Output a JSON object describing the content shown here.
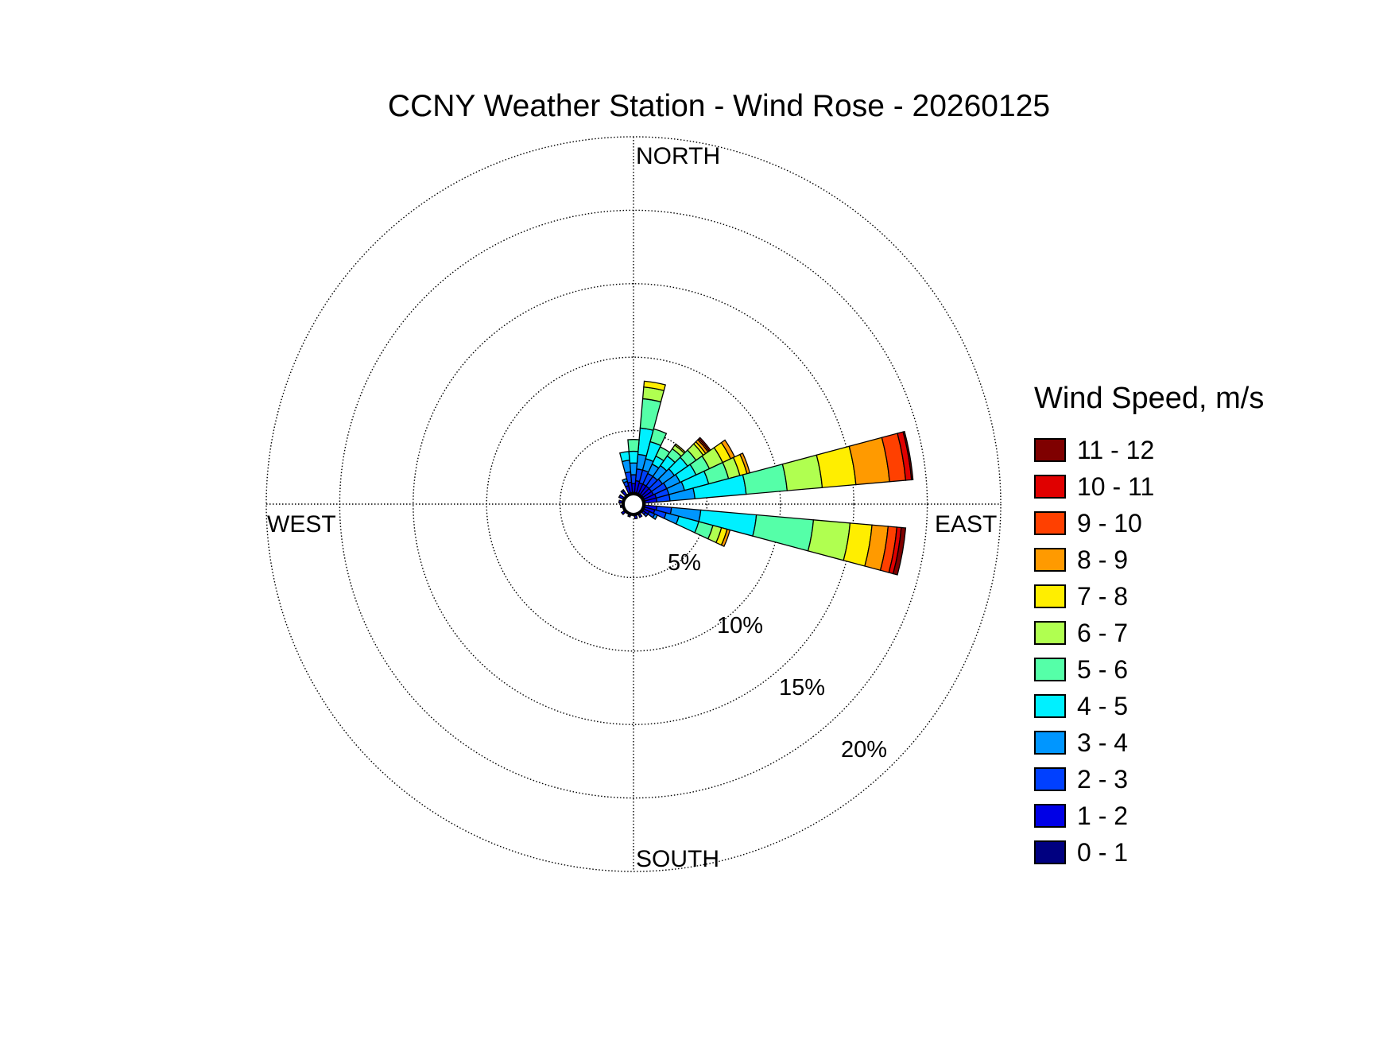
{
  "chart_data": {
    "type": "wind-rose",
    "title": "CCNY Weather Station - Wind Rose - 20260125",
    "directions": {
      "north": "NORTH",
      "south": "SOUTH",
      "east": "EAST",
      "west": "WEST"
    },
    "radial_max_pct": 25,
    "radial_ticks": [
      5,
      10,
      15,
      20,
      25
    ],
    "radial_tick_labels": [
      "5%",
      "10%",
      "15%",
      "20%"
    ],
    "legend_title": "Wind Speed, m/s",
    "speed_bins": [
      {
        "label": "11 - 12",
        "color": "#7f0000"
      },
      {
        "label": "10 - 11",
        "color": "#e00000"
      },
      {
        "label": "9 - 10",
        "color": "#ff4000"
      },
      {
        "label": "8 - 9",
        "color": "#ff9a00"
      },
      {
        "label": "7 - 8",
        "color": "#ffee00"
      },
      {
        "label": "6 - 7",
        "color": "#b0ff50"
      },
      {
        "label": "5 - 6",
        "color": "#55ffa8"
      },
      {
        "label": "4 - 5",
        "color": "#00f0ff"
      },
      {
        "label": "3 - 4",
        "color": "#0096ff"
      },
      {
        "label": "2 - 3",
        "color": "#0040ff"
      },
      {
        "label": "1 - 2",
        "color": "#0000e6"
      },
      {
        "label": "0 - 1",
        "color": "#000080"
      }
    ],
    "sector_width_deg": 10,
    "sectors": [
      {
        "direction_deg": 10,
        "cumulative_pct": [
          0.8,
          1.6,
          2.4,
          3.4,
          5.2,
          7.2,
          8.0,
          8.4,
          8.4,
          8.4,
          8.4,
          8.4
        ]
      },
      {
        "direction_deg": 20,
        "cumulative_pct": [
          0.8,
          1.5,
          2.4,
          3.2,
          4.4,
          5.3,
          5.3,
          5.3,
          5.3,
          5.3,
          5.3,
          5.3
        ]
      },
      {
        "direction_deg": 30,
        "cumulative_pct": [
          0.8,
          1.5,
          2.3,
          3.0,
          3.6,
          4.3,
          4.3,
          4.3,
          4.3,
          4.3,
          4.3,
          4.3
        ]
      },
      {
        "direction_deg": 40,
        "cumulative_pct": [
          0.8,
          1.5,
          2.3,
          3.2,
          4.0,
          4.6,
          4.9,
          5.0,
          5.0,
          5.0,
          5.0,
          5.0
        ]
      },
      {
        "direction_deg": 50,
        "cumulative_pct": [
          0.8,
          1.5,
          2.4,
          3.4,
          4.5,
          5.2,
          5.8,
          6.0,
          6.2,
          6.3,
          6.4,
          6.4
        ]
      },
      {
        "direction_deg": 60,
        "cumulative_pct": [
          0.8,
          1.5,
          2.5,
          3.5,
          4.7,
          5.7,
          6.7,
          7.3,
          7.6,
          7.6,
          7.6,
          7.6
        ]
      },
      {
        "direction_deg": 70,
        "cumulative_pct": [
          0.8,
          1.6,
          2.5,
          3.6,
          5.3,
          6.7,
          7.5,
          8.0,
          8.2,
          8.2,
          8.2,
          8.2
        ]
      },
      {
        "direction_deg": 80,
        "cumulative_pct": [
          0.8,
          1.6,
          2.5,
          4.2,
          7.7,
          10.5,
          12.9,
          15.2,
          17.5,
          18.6,
          19.0,
          19.1
        ]
      },
      {
        "direction_deg": 100,
        "cumulative_pct": [
          0.8,
          1.6,
          2.6,
          4.6,
          8.4,
          12.3,
          14.8,
          16.3,
          17.4,
          18.0,
          18.3,
          18.6
        ]
      },
      {
        "direction_deg": 110,
        "cumulative_pct": [
          0.8,
          1.5,
          2.3,
          3.2,
          4.6,
          5.6,
          6.2,
          6.6,
          6.8,
          6.8,
          6.8,
          6.8
        ]
      },
      {
        "direction_deg": 120,
        "cumulative_pct": [
          0.8,
          1.2,
          1.6,
          1.8,
          1.8,
          1.8,
          1.8,
          1.8,
          1.8,
          1.8,
          1.8,
          1.8
        ]
      },
      {
        "direction_deg": 130,
        "cumulative_pct": [
          0.8,
          1.0,
          1.2,
          1.2,
          1.2,
          1.2,
          1.2,
          1.2,
          1.2,
          1.2,
          1.2,
          1.2
        ]
      },
      {
        "direction_deg": 150,
        "cumulative_pct": [
          0.8,
          1.0,
          1.0,
          1.0,
          1.0,
          1.0,
          1.0,
          1.0,
          1.0,
          1.0,
          1.0,
          1.0
        ]
      },
      {
        "direction_deg": 170,
        "cumulative_pct": [
          0.8,
          1.0,
          1.0,
          1.0,
          1.0,
          1.0,
          1.0,
          1.0,
          1.0,
          1.0,
          1.0,
          1.0
        ]
      },
      {
        "direction_deg": 200,
        "cumulative_pct": [
          0.8,
          0.9,
          0.9,
          0.9,
          0.9,
          0.9,
          0.9,
          0.9,
          0.9,
          0.9,
          0.9,
          0.9
        ]
      },
      {
        "direction_deg": 230,
        "cumulative_pct": [
          0.8,
          1.0,
          1.0,
          1.0,
          1.0,
          1.0,
          1.0,
          1.0,
          1.0,
          1.0,
          1.0,
          1.0
        ]
      },
      {
        "direction_deg": 260,
        "cumulative_pct": [
          0.8,
          0.9,
          0.9,
          0.9,
          0.9,
          0.9,
          0.9,
          0.9,
          0.9,
          0.9,
          0.9,
          0.9
        ]
      },
      {
        "direction_deg": 280,
        "cumulative_pct": [
          0.8,
          1.0,
          1.0,
          1.0,
          1.0,
          1.0,
          1.0,
          1.0,
          1.0,
          1.0,
          1.0,
          1.0
        ]
      },
      {
        "direction_deg": 300,
        "cumulative_pct": [
          0.8,
          1.1,
          1.1,
          1.1,
          1.1,
          1.1,
          1.1,
          1.1,
          1.1,
          1.1,
          1.1,
          1.1
        ]
      },
      {
        "direction_deg": 320,
        "cumulative_pct": [
          0.8,
          1.1,
          1.2,
          1.2,
          1.2,
          1.2,
          1.2,
          1.2,
          1.2,
          1.2,
          1.2,
          1.2
        ]
      },
      {
        "direction_deg": 340,
        "cumulative_pct": [
          0.8,
          1.3,
          1.6,
          1.8,
          1.8,
          1.8,
          1.8,
          1.8,
          1.8,
          1.8,
          1.8,
          1.8
        ]
      },
      {
        "direction_deg": 350,
        "cumulative_pct": [
          0.8,
          1.5,
          2.2,
          3.0,
          3.6,
          3.6,
          3.6,
          3.6,
          3.6,
          3.6,
          3.6,
          3.6
        ]
      },
      {
        "direction_deg": 0,
        "cumulative_pct": [
          0.8,
          1.4,
          2.0,
          2.8,
          3.6,
          4.4,
          4.4,
          4.4,
          4.4,
          4.4,
          4.4,
          4.4
        ]
      }
    ],
    "grid": true
  }
}
